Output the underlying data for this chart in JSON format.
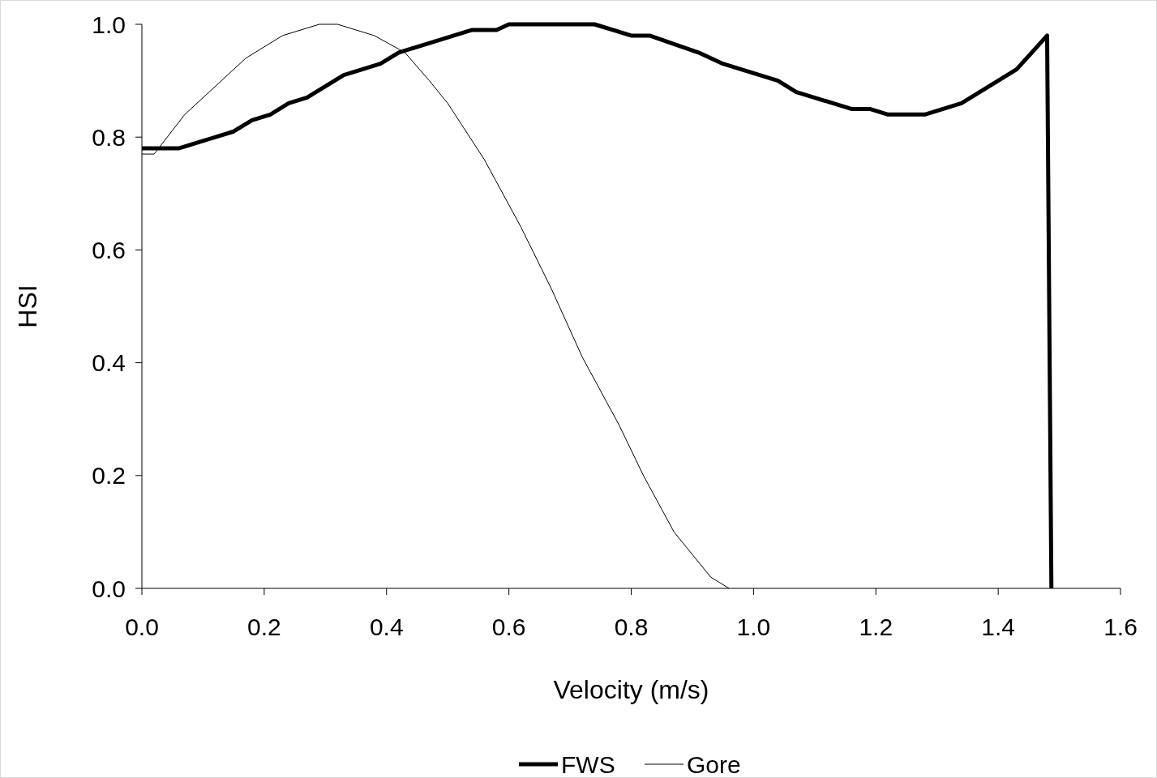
{
  "chart_data": {
    "type": "line",
    "xlabel": "Velocity (m/s)",
    "ylabel": "HSI",
    "xlim": [
      0,
      1.6
    ],
    "ylim": [
      0,
      1
    ],
    "xticks": [
      {
        "value": 0,
        "label": "0.0"
      },
      {
        "value": 0.2,
        "label": "0.2"
      },
      {
        "value": 0.4,
        "label": "0.4"
      },
      {
        "value": 0.6,
        "label": "0.6"
      },
      {
        "value": 0.8,
        "label": "0.8"
      },
      {
        "value": 1,
        "label": "1.0"
      },
      {
        "value": 1.2,
        "label": "1.2"
      },
      {
        "value": 1.4,
        "label": "1.4"
      },
      {
        "value": 1.6,
        "label": "1.6"
      }
    ],
    "yticks": [
      {
        "value": 0,
        "label": "0.0"
      },
      {
        "value": 0.2,
        "label": "0.2"
      },
      {
        "value": 0.4,
        "label": "0.4"
      },
      {
        "value": 0.6,
        "label": "0.6"
      },
      {
        "value": 0.8,
        "label": "0.8"
      },
      {
        "value": 1,
        "label": "1.0"
      }
    ],
    "grid": false,
    "legend": "bottom",
    "marker": "none",
    "line_style": "solid",
    "series": [
      {
        "name": "FWS",
        "color": "#000000",
        "x": [
          0,
          0.06,
          0.15,
          0.18,
          0.21,
          0.24,
          0.27,
          0.33,
          0.39,
          0.42,
          0.48,
          0.54,
          0.58,
          0.6,
          0.74,
          0.8,
          0.83,
          0.91,
          0.95,
          1.04,
          1.07,
          1.16,
          1.19,
          1.22,
          1.28,
          1.34,
          1.43,
          1.48,
          1.487
        ],
        "values": [
          0.78,
          0.78,
          0.81,
          0.83,
          0.84,
          0.86,
          0.87,
          0.91,
          0.93,
          0.95,
          0.97,
          0.99,
          0.99,
          1.0,
          1.0,
          0.98,
          0.98,
          0.95,
          0.93,
          0.9,
          0.88,
          0.85,
          0.85,
          0.84,
          0.84,
          0.86,
          0.92,
          0.98,
          0
        ]
      },
      {
        "name": "Gore",
        "color": "#000000",
        "x": [
          0,
          0.02,
          0.07,
          0.11,
          0.17,
          0.23,
          0.29,
          0.32,
          0.38,
          0.43,
          0.47,
          0.5,
          0.56,
          0.62,
          0.67,
          0.72,
          0.78,
          0.82,
          0.87,
          0.93,
          0.96
        ],
        "values": [
          0.77,
          0.77,
          0.84,
          0.88,
          0.94,
          0.98,
          1.0,
          1.0,
          0.98,
          0.95,
          0.9,
          0.86,
          0.76,
          0.64,
          0.53,
          0.41,
          0.29,
          0.2,
          0.1,
          0.02,
          0
        ]
      }
    ]
  }
}
